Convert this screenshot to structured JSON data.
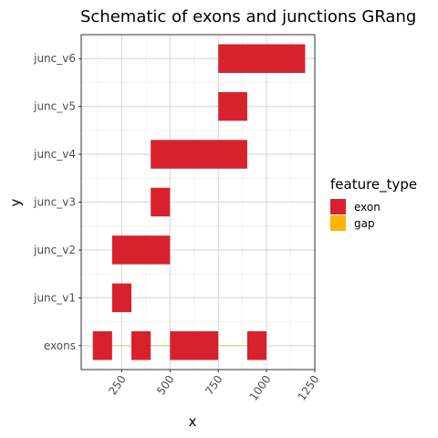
{
  "chart_data": {
    "type": "bar",
    "orientation": "horizontal-ranges",
    "title": "Schematic of exons and junctions GRang",
    "xlabel": "x",
    "ylabel": "y",
    "xlim": [
      40,
      1250
    ],
    "x_ticks": [
      250,
      500,
      750,
      1000,
      1250
    ],
    "x_tick_labels": [
      "250",
      "500",
      "750",
      "1000",
      "1250"
    ],
    "categories": [
      "exons",
      "junc_v1",
      "junc_v2",
      "junc_v3",
      "junc_v4",
      "junc_v5",
      "junc_v6"
    ],
    "grid": true,
    "legend": {
      "title": "feature_type",
      "position": "right",
      "entries": [
        {
          "label": "exon",
          "color": "#D7222E"
        },
        {
          "label": "gap",
          "color": "#FFB400"
        }
      ]
    },
    "features": [
      {
        "category": "exons",
        "type": "exon",
        "start": 100,
        "end": 200
      },
      {
        "category": "exons",
        "type": "gap",
        "start": 200,
        "end": 300
      },
      {
        "category": "exons",
        "type": "exon",
        "start": 300,
        "end": 400
      },
      {
        "category": "exons",
        "type": "gap",
        "start": 400,
        "end": 500
      },
      {
        "category": "exons",
        "type": "exon",
        "start": 500,
        "end": 750
      },
      {
        "category": "exons",
        "type": "gap",
        "start": 750,
        "end": 900
      },
      {
        "category": "exons",
        "type": "exon",
        "start": 900,
        "end": 1000
      },
      {
        "category": "junc_v1",
        "type": "exon",
        "start": 200,
        "end": 300
      },
      {
        "category": "junc_v2",
        "type": "exon",
        "start": 200,
        "end": 500
      },
      {
        "category": "junc_v3",
        "type": "exon",
        "start": 400,
        "end": 500
      },
      {
        "category": "junc_v4",
        "type": "exon",
        "start": 400,
        "end": 900
      },
      {
        "category": "junc_v5",
        "type": "exon",
        "start": 750,
        "end": 900
      },
      {
        "category": "junc_v6",
        "type": "exon",
        "start": 750,
        "end": 1200
      }
    ]
  }
}
